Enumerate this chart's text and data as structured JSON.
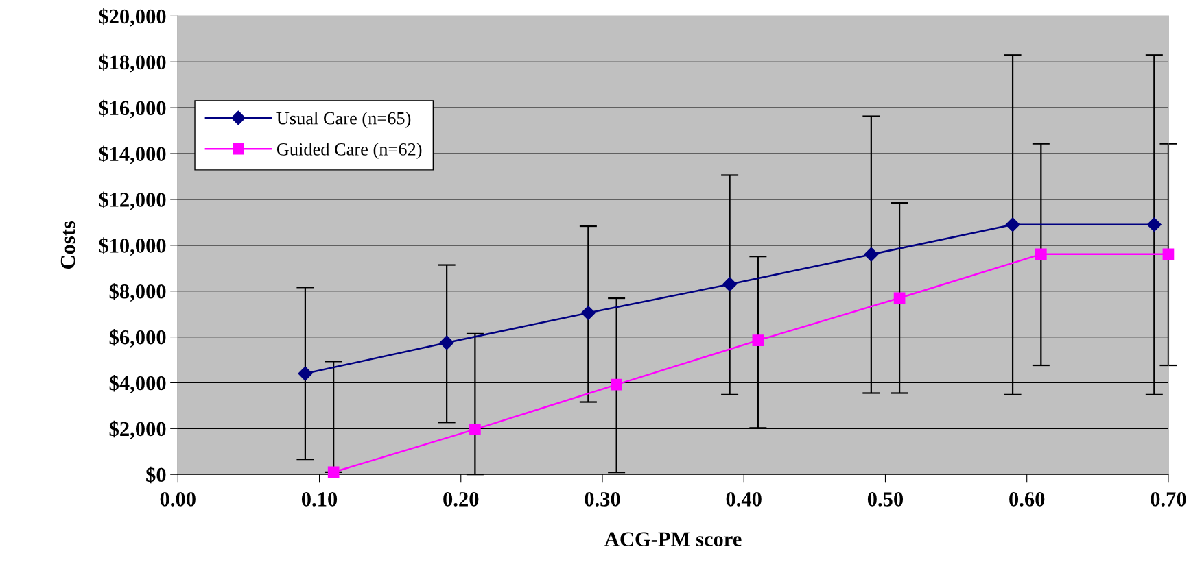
{
  "chart_data": {
    "type": "line",
    "xlabel": "ACG-PM score",
    "ylabel": "Costs",
    "xlim": [
      0,
      0.7
    ],
    "xticks": [
      {
        "value": 0,
        "label": "0.00"
      },
      {
        "value": 0.1,
        "label": "0.10"
      },
      {
        "value": 0.2,
        "label": "0.20"
      },
      {
        "value": 0.3,
        "label": "0.30"
      },
      {
        "value": 0.4,
        "label": "0.40"
      },
      {
        "value": 0.5,
        "label": "0.50"
      },
      {
        "value": 0.6,
        "label": "0.60"
      },
      {
        "value": 0.7,
        "label": "0.70"
      }
    ],
    "ylim": [
      0,
      20000
    ],
    "yticks": [
      {
        "value": 0,
        "label": "$0"
      },
      {
        "value": 2000,
        "label": "$2,000"
      },
      {
        "value": 4000,
        "label": "$4,000"
      },
      {
        "value": 6000,
        "label": "$6,000"
      },
      {
        "value": 8000,
        "label": "$8,000"
      },
      {
        "value": 10000,
        "label": "$10,000"
      },
      {
        "value": 12000,
        "label": "$12,000"
      },
      {
        "value": 14000,
        "label": "$14,000"
      },
      {
        "value": 16000,
        "label": "$16,000"
      },
      {
        "value": 18000,
        "label": "$18,000"
      },
      {
        "value": 20000,
        "label": "$20,000"
      }
    ],
    "grid": "y",
    "legend": "top left",
    "series": [
      {
        "name": "Usual Care (n=65)",
        "color": "#000080",
        "marker": "diamond",
        "x": [
          0.09,
          0.19,
          0.29,
          0.39,
          0.49,
          0.59,
          0.69
        ],
        "values": [
          4400,
          5750,
          7050,
          8300,
          9600,
          10900,
          10900
        ],
        "errors": [
          [
            660,
            8160
          ],
          [
            2270,
            9140
          ],
          [
            3160,
            10830
          ],
          [
            3480,
            13060
          ],
          [
            3550,
            15630
          ],
          [
            3480,
            18300
          ],
          [
            3480,
            18300
          ]
        ]
      },
      {
        "name": "Guided Care (n=62)",
        "color": "#ff00ff",
        "marker": "square",
        "x": [
          0.11,
          0.21,
          0.31,
          0.41,
          0.51,
          0.61,
          0.7
        ],
        "values": [
          100,
          1970,
          3920,
          5850,
          7700,
          9610,
          9610
        ],
        "errors": [
          [
            100,
            4930
          ],
          [
            0,
            6140
          ],
          [
            90,
            7690
          ],
          [
            2030,
            9510
          ],
          [
            3550,
            11850
          ],
          [
            4760,
            14430
          ],
          [
            4760,
            14430
          ]
        ]
      }
    ]
  }
}
